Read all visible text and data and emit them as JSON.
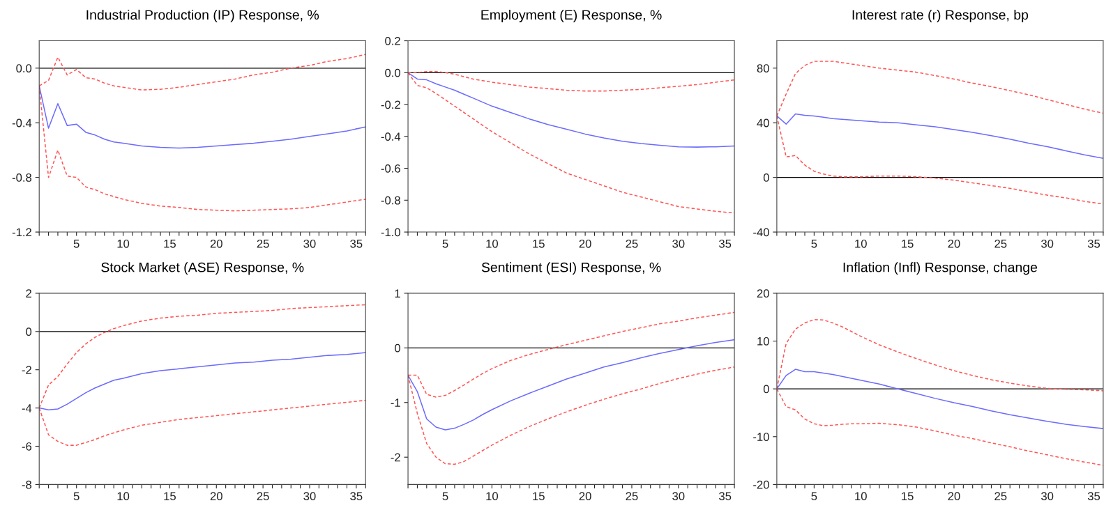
{
  "chart_data": [
    {
      "type": "line",
      "title": "Industrial Production (IP) Response, %",
      "x": [
        1,
        2,
        3,
        4,
        5,
        6,
        7,
        8,
        9,
        10,
        12,
        14,
        16,
        18,
        20,
        22,
        24,
        26,
        28,
        30,
        32,
        34,
        36
      ],
      "xlim": [
        1,
        36
      ],
      "xticks": [
        {
          "value": 1,
          "label": null
        },
        {
          "value": 2,
          "label": null
        },
        {
          "value": 3,
          "label": null
        },
        {
          "value": 4,
          "label": null
        },
        5,
        {
          "value": 6,
          "label": null
        },
        {
          "value": 7,
          "label": null
        },
        {
          "value": 8,
          "label": null
        },
        {
          "value": 9,
          "label": null
        },
        10,
        {
          "value": 11,
          "label": null
        },
        {
          "value": 12,
          "label": null
        },
        {
          "value": 13,
          "label": null
        },
        {
          "value": 14,
          "label": null
        },
        15,
        {
          "value": 16,
          "label": null
        },
        {
          "value": 17,
          "label": null
        },
        {
          "value": 18,
          "label": null
        },
        {
          "value": 19,
          "label": null
        },
        20,
        {
          "value": 21,
          "label": null
        },
        {
          "value": 22,
          "label": null
        },
        {
          "value": 23,
          "label": null
        },
        {
          "value": 24,
          "label": null
        },
        25,
        {
          "value": 26,
          "label": null
        },
        {
          "value": 27,
          "label": null
        },
        {
          "value": 28,
          "label": null
        },
        {
          "value": 29,
          "label": null
        },
        30,
        {
          "value": 31,
          "label": null
        },
        {
          "value": 32,
          "label": null
        },
        {
          "value": 33,
          "label": null
        },
        {
          "value": 34,
          "label": null
        },
        35,
        {
          "value": 36,
          "label": null
        }
      ],
      "ylim": [
        -1.2,
        0.2
      ],
      "yticks": [
        {
          "value": -1.2,
          "label": "-1.2"
        },
        {
          "value": -0.8,
          "label": "-0.8"
        },
        {
          "value": -0.4,
          "label": "-0.4"
        },
        {
          "value": 0,
          "label": "0.0"
        }
      ],
      "grid": false,
      "ref_lines": [
        {
          "axis": "y",
          "value": 0,
          "color": "#000000"
        }
      ],
      "series": [
        {
          "color": "#6b6bff",
          "line_style": "solid",
          "values": [
            -0.13,
            -0.44,
            -0.26,
            -0.42,
            -0.41,
            -0.47,
            -0.49,
            -0.52,
            -0.54,
            -0.55,
            -0.57,
            -0.58,
            -0.585,
            -0.58,
            -0.57,
            -0.56,
            -0.55,
            -0.535,
            -0.52,
            -0.5,
            -0.48,
            -0.46,
            -0.43
          ]
        },
        {
          "color": "#ff5555",
          "line_style": "dashed",
          "values": [
            -0.13,
            -0.09,
            0.08,
            -0.05,
            -0.01,
            -0.07,
            -0.08,
            -0.11,
            -0.13,
            -0.14,
            -0.16,
            -0.155,
            -0.14,
            -0.12,
            -0.1,
            -0.08,
            -0.05,
            -0.03,
            0.0,
            0.02,
            0.05,
            0.07,
            0.1
          ]
        },
        {
          "color": "#ff5555",
          "line_style": "dashed",
          "values": [
            -0.13,
            -0.8,
            -0.6,
            -0.79,
            -0.8,
            -0.87,
            -0.89,
            -0.92,
            -0.94,
            -0.96,
            -0.99,
            -1.01,
            -1.02,
            -1.035,
            -1.04,
            -1.045,
            -1.04,
            -1.035,
            -1.03,
            -1.02,
            -1.0,
            -0.98,
            -0.96
          ]
        }
      ]
    },
    {
      "type": "line",
      "title": "Employment (E) Response, %",
      "x": [
        1,
        2,
        3,
        4,
        5,
        6,
        7,
        8,
        9,
        10,
        12,
        14,
        16,
        18,
        20,
        22,
        24,
        26,
        28,
        30,
        32,
        34,
        36
      ],
      "xlim": [
        1,
        36
      ],
      "xticks": [
        {
          "value": 1,
          "label": null
        },
        {
          "value": 2,
          "label": null
        },
        {
          "value": 3,
          "label": null
        },
        {
          "value": 4,
          "label": null
        },
        5,
        {
          "value": 6,
          "label": null
        },
        {
          "value": 7,
          "label": null
        },
        {
          "value": 8,
          "label": null
        },
        {
          "value": 9,
          "label": null
        },
        10,
        {
          "value": 11,
          "label": null
        },
        {
          "value": 12,
          "label": null
        },
        {
          "value": 13,
          "label": null
        },
        {
          "value": 14,
          "label": null
        },
        15,
        {
          "value": 16,
          "label": null
        },
        {
          "value": 17,
          "label": null
        },
        {
          "value": 18,
          "label": null
        },
        {
          "value": 19,
          "label": null
        },
        20,
        {
          "value": 21,
          "label": null
        },
        {
          "value": 22,
          "label": null
        },
        {
          "value": 23,
          "label": null
        },
        {
          "value": 24,
          "label": null
        },
        25,
        {
          "value": 26,
          "label": null
        },
        {
          "value": 27,
          "label": null
        },
        {
          "value": 28,
          "label": null
        },
        {
          "value": 29,
          "label": null
        },
        30,
        {
          "value": 31,
          "label": null
        },
        {
          "value": 32,
          "label": null
        },
        {
          "value": 33,
          "label": null
        },
        {
          "value": 34,
          "label": null
        },
        35,
        {
          "value": 36,
          "label": null
        }
      ],
      "ylim": [
        -1.0,
        0.2
      ],
      "yticks": [
        {
          "value": -1.0,
          "label": "-1.0"
        },
        {
          "value": -0.8,
          "label": "-0.8"
        },
        {
          "value": -0.6,
          "label": "-0.6"
        },
        {
          "value": -0.4,
          "label": "-0.4"
        },
        {
          "value": -0.2,
          "label": "-0.2"
        },
        {
          "value": 0,
          "label": "0.0"
        },
        {
          "value": 0.2,
          "label": "0.2"
        }
      ],
      "grid": false,
      "ref_lines": [
        {
          "axis": "y",
          "value": 0,
          "color": "#000000"
        }
      ],
      "series": [
        {
          "color": "#6b6bff",
          "line_style": "solid",
          "values": [
            0,
            -0.04,
            -0.045,
            -0.07,
            -0.09,
            -0.11,
            -0.135,
            -0.16,
            -0.185,
            -0.21,
            -0.25,
            -0.29,
            -0.325,
            -0.355,
            -0.385,
            -0.41,
            -0.43,
            -0.445,
            -0.455,
            -0.465,
            -0.467,
            -0.465,
            -0.46
          ]
        },
        {
          "color": "#ff5555",
          "line_style": "dashed",
          "values": [
            0,
            0,
            0.007,
            0.007,
            0,
            -0.01,
            -0.025,
            -0.04,
            -0.05,
            -0.06,
            -0.075,
            -0.09,
            -0.1,
            -0.11,
            -0.115,
            -0.115,
            -0.11,
            -0.105,
            -0.095,
            -0.085,
            -0.075,
            -0.06,
            -0.045
          ]
        },
        {
          "color": "#ff5555",
          "line_style": "dashed",
          "values": [
            0,
            -0.08,
            -0.095,
            -0.13,
            -0.17,
            -0.21,
            -0.25,
            -0.29,
            -0.33,
            -0.37,
            -0.44,
            -0.51,
            -0.57,
            -0.63,
            -0.67,
            -0.71,
            -0.75,
            -0.78,
            -0.81,
            -0.84,
            -0.855,
            -0.87,
            -0.88
          ]
        }
      ]
    },
    {
      "type": "line",
      "title": "Interest rate (r) Response, bp",
      "x": [
        1,
        2,
        3,
        4,
        5,
        6,
        7,
        8,
        9,
        10,
        12,
        14,
        16,
        18,
        20,
        22,
        24,
        26,
        28,
        30,
        32,
        34,
        36
      ],
      "xlim": [
        1,
        36
      ],
      "xticks": [
        {
          "value": 1,
          "label": null
        },
        {
          "value": 2,
          "label": null
        },
        {
          "value": 3,
          "label": null
        },
        {
          "value": 4,
          "label": null
        },
        5,
        {
          "value": 6,
          "label": null
        },
        {
          "value": 7,
          "label": null
        },
        {
          "value": 8,
          "label": null
        },
        {
          "value": 9,
          "label": null
        },
        10,
        {
          "value": 11,
          "label": null
        },
        {
          "value": 12,
          "label": null
        },
        {
          "value": 13,
          "label": null
        },
        {
          "value": 14,
          "label": null
        },
        15,
        {
          "value": 16,
          "label": null
        },
        {
          "value": 17,
          "label": null
        },
        {
          "value": 18,
          "label": null
        },
        {
          "value": 19,
          "label": null
        },
        20,
        {
          "value": 21,
          "label": null
        },
        {
          "value": 22,
          "label": null
        },
        {
          "value": 23,
          "label": null
        },
        {
          "value": 24,
          "label": null
        },
        25,
        {
          "value": 26,
          "label": null
        },
        {
          "value": 27,
          "label": null
        },
        {
          "value": 28,
          "label": null
        },
        {
          "value": 29,
          "label": null
        },
        30,
        {
          "value": 31,
          "label": null
        },
        {
          "value": 32,
          "label": null
        },
        {
          "value": 33,
          "label": null
        },
        {
          "value": 34,
          "label": null
        },
        35,
        {
          "value": 36,
          "label": null
        }
      ],
      "ylim": [
        -40,
        100
      ],
      "yticks": [
        -40,
        0,
        40,
        80
      ],
      "grid": false,
      "ref_lines": [
        {
          "axis": "y",
          "value": 0,
          "color": "#000000"
        }
      ],
      "series": [
        {
          "color": "#6b6bff",
          "line_style": "solid",
          "values": [
            45,
            39,
            46.5,
            45.5,
            45,
            44,
            43,
            42.5,
            42,
            41.5,
            40.5,
            40,
            38.5,
            37,
            35,
            33,
            30.5,
            28,
            25,
            22.5,
            19.5,
            16.5,
            14
          ]
        },
        {
          "color": "#ff5555",
          "line_style": "dashed",
          "values": [
            45,
            61,
            76,
            82,
            85,
            85,
            85,
            84,
            83,
            82,
            80,
            78.5,
            77,
            74.5,
            72,
            69,
            66.5,
            63.5,
            60.5,
            57,
            53.5,
            50,
            47
          ]
        },
        {
          "color": "#ff5555",
          "line_style": "dashed",
          "values": [
            45,
            15,
            16,
            9,
            4.5,
            2.5,
            1,
            0.5,
            0.5,
            0.5,
            1,
            1,
            0.5,
            -0.5,
            -2,
            -4,
            -6,
            -8,
            -10.5,
            -13,
            -15,
            -17.5,
            -19.5
          ]
        }
      ]
    },
    {
      "type": "line",
      "title": "Stock Market (ASE) Response, %",
      "x": [
        1,
        2,
        3,
        4,
        5,
        6,
        7,
        8,
        9,
        10,
        12,
        14,
        16,
        18,
        20,
        22,
        24,
        26,
        28,
        30,
        32,
        34,
        36
      ],
      "xlim": [
        1,
        36
      ],
      "xticks": [
        {
          "value": 1,
          "label": null
        },
        {
          "value": 2,
          "label": null
        },
        {
          "value": 3,
          "label": null
        },
        {
          "value": 4,
          "label": null
        },
        5,
        {
          "value": 6,
          "label": null
        },
        {
          "value": 7,
          "label": null
        },
        {
          "value": 8,
          "label": null
        },
        {
          "value": 9,
          "label": null
        },
        10,
        {
          "value": 11,
          "label": null
        },
        {
          "value": 12,
          "label": null
        },
        {
          "value": 13,
          "label": null
        },
        {
          "value": 14,
          "label": null
        },
        15,
        {
          "value": 16,
          "label": null
        },
        {
          "value": 17,
          "label": null
        },
        {
          "value": 18,
          "label": null
        },
        {
          "value": 19,
          "label": null
        },
        20,
        {
          "value": 21,
          "label": null
        },
        {
          "value": 22,
          "label": null
        },
        {
          "value": 23,
          "label": null
        },
        {
          "value": 24,
          "label": null
        },
        25,
        {
          "value": 26,
          "label": null
        },
        {
          "value": 27,
          "label": null
        },
        {
          "value": 28,
          "label": null
        },
        {
          "value": 29,
          "label": null
        },
        30,
        {
          "value": 31,
          "label": null
        },
        {
          "value": 32,
          "label": null
        },
        {
          "value": 33,
          "label": null
        },
        {
          "value": 34,
          "label": null
        },
        35,
        {
          "value": 36,
          "label": null
        }
      ],
      "ylim": [
        -8,
        2
      ],
      "yticks": [
        -8,
        -6,
        -4,
        -2,
        0,
        2
      ],
      "grid": false,
      "ref_lines": [
        {
          "axis": "y",
          "value": 0,
          "color": "#000000"
        }
      ],
      "series": [
        {
          "color": "#6b6bff",
          "line_style": "solid",
          "values": [
            -4,
            -4.1,
            -4.05,
            -3.8,
            -3.5,
            -3.2,
            -2.95,
            -2.75,
            -2.55,
            -2.45,
            -2.2,
            -2.05,
            -1.95,
            -1.85,
            -1.75,
            -1.65,
            -1.6,
            -1.5,
            -1.45,
            -1.35,
            -1.25,
            -1.2,
            -1.1
          ]
        },
        {
          "color": "#ff5555",
          "line_style": "dashed",
          "values": [
            -4,
            -2.8,
            -2.35,
            -1.7,
            -1.1,
            -0.65,
            -0.3,
            -0.05,
            0.15,
            0.3,
            0.55,
            0.7,
            0.8,
            0.85,
            0.95,
            1.0,
            1.05,
            1.1,
            1.2,
            1.25,
            1.3,
            1.35,
            1.4
          ]
        },
        {
          "color": "#ff5555",
          "line_style": "dashed",
          "values": [
            -4,
            -5.4,
            -5.75,
            -5.95,
            -5.95,
            -5.8,
            -5.65,
            -5.45,
            -5.3,
            -5.15,
            -4.9,
            -4.75,
            -4.6,
            -4.5,
            -4.4,
            -4.3,
            -4.2,
            -4.1,
            -4.0,
            -3.9,
            -3.8,
            -3.7,
            -3.6
          ]
        }
      ]
    },
    {
      "type": "line",
      "title": "Sentiment (ESI) Response, %",
      "x": [
        1,
        2,
        3,
        4,
        5,
        6,
        7,
        8,
        9,
        10,
        12,
        14,
        16,
        18,
        20,
        22,
        24,
        26,
        28,
        30,
        32,
        34,
        36
      ],
      "xlim": [
        1,
        36
      ],
      "xticks": [
        {
          "value": 1,
          "label": null
        },
        {
          "value": 2,
          "label": null
        },
        {
          "value": 3,
          "label": null
        },
        {
          "value": 4,
          "label": null
        },
        5,
        {
          "value": 6,
          "label": null
        },
        {
          "value": 7,
          "label": null
        },
        {
          "value": 8,
          "label": null
        },
        {
          "value": 9,
          "label": null
        },
        10,
        {
          "value": 11,
          "label": null
        },
        {
          "value": 12,
          "label": null
        },
        {
          "value": 13,
          "label": null
        },
        {
          "value": 14,
          "label": null
        },
        15,
        {
          "value": 16,
          "label": null
        },
        {
          "value": 17,
          "label": null
        },
        {
          "value": 18,
          "label": null
        },
        {
          "value": 19,
          "label": null
        },
        20,
        {
          "value": 21,
          "label": null
        },
        {
          "value": 22,
          "label": null
        },
        {
          "value": 23,
          "label": null
        },
        {
          "value": 24,
          "label": null
        },
        25,
        {
          "value": 26,
          "label": null
        },
        {
          "value": 27,
          "label": null
        },
        {
          "value": 28,
          "label": null
        },
        {
          "value": 29,
          "label": null
        },
        30,
        {
          "value": 31,
          "label": null
        },
        {
          "value": 32,
          "label": null
        },
        {
          "value": 33,
          "label": null
        },
        {
          "value": 34,
          "label": null
        },
        35,
        {
          "value": 36,
          "label": null
        }
      ],
      "ylim": [
        -2.5,
        1
      ],
      "yticks": [
        -2,
        -1,
        0,
        1
      ],
      "grid": false,
      "ref_lines": [
        {
          "axis": "y",
          "value": 0,
          "color": "#000000"
        }
      ],
      "series": [
        {
          "color": "#6b6bff",
          "line_style": "solid",
          "values": [
            -0.5,
            -0.8,
            -1.3,
            -1.45,
            -1.5,
            -1.47,
            -1.4,
            -1.32,
            -1.22,
            -1.13,
            -0.97,
            -0.83,
            -0.7,
            -0.57,
            -0.46,
            -0.35,
            -0.27,
            -0.18,
            -0.1,
            -0.03,
            0.04,
            0.1,
            0.15
          ]
        },
        {
          "color": "#ff5555",
          "line_style": "dashed",
          "values": [
            -0.5,
            -0.5,
            -0.85,
            -0.9,
            -0.87,
            -0.78,
            -0.68,
            -0.57,
            -0.47,
            -0.38,
            -0.23,
            -0.12,
            -0.03,
            0.06,
            0.14,
            0.22,
            0.3,
            0.37,
            0.44,
            0.49,
            0.55,
            0.6,
            0.65
          ]
        },
        {
          "color": "#ff5555",
          "line_style": "dashed",
          "values": [
            -0.5,
            -1.2,
            -1.75,
            -2.0,
            -2.12,
            -2.13,
            -2.08,
            -1.98,
            -1.88,
            -1.78,
            -1.6,
            -1.44,
            -1.3,
            -1.17,
            -1.05,
            -0.94,
            -0.84,
            -0.75,
            -0.65,
            -0.56,
            -0.48,
            -0.41,
            -0.35
          ]
        }
      ]
    },
    {
      "type": "line",
      "title": "Inflation (Infl) Response, change",
      "x": [
        1,
        2,
        3,
        4,
        5,
        6,
        7,
        8,
        9,
        10,
        12,
        14,
        16,
        18,
        20,
        22,
        24,
        26,
        28,
        30,
        32,
        34,
        36
      ],
      "xlim": [
        1,
        36
      ],
      "xticks": [
        {
          "value": 1,
          "label": null
        },
        {
          "value": 2,
          "label": null
        },
        {
          "value": 3,
          "label": null
        },
        {
          "value": 4,
          "label": null
        },
        5,
        {
          "value": 6,
          "label": null
        },
        {
          "value": 7,
          "label": null
        },
        {
          "value": 8,
          "label": null
        },
        {
          "value": 9,
          "label": null
        },
        10,
        {
          "value": 11,
          "label": null
        },
        {
          "value": 12,
          "label": null
        },
        {
          "value": 13,
          "label": null
        },
        {
          "value": 14,
          "label": null
        },
        15,
        {
          "value": 16,
          "label": null
        },
        {
          "value": 17,
          "label": null
        },
        {
          "value": 18,
          "label": null
        },
        {
          "value": 19,
          "label": null
        },
        20,
        {
          "value": 21,
          "label": null
        },
        {
          "value": 22,
          "label": null
        },
        {
          "value": 23,
          "label": null
        },
        {
          "value": 24,
          "label": null
        },
        25,
        {
          "value": 26,
          "label": null
        },
        {
          "value": 27,
          "label": null
        },
        {
          "value": 28,
          "label": null
        },
        {
          "value": 29,
          "label": null
        },
        30,
        {
          "value": 31,
          "label": null
        },
        {
          "value": 32,
          "label": null
        },
        {
          "value": 33,
          "label": null
        },
        {
          "value": 34,
          "label": null
        },
        35,
        {
          "value": 36,
          "label": null
        }
      ],
      "ylim": [
        -20,
        20
      ],
      "yticks": [
        -20,
        -10,
        0,
        10,
        20
      ],
      "grid": false,
      "ref_lines": [
        {
          "axis": "y",
          "value": 0,
          "color": "#000000"
        }
      ],
      "series": [
        {
          "color": "#6b6bff",
          "line_style": "solid",
          "values": [
            0,
            2.8,
            4.1,
            3.6,
            3.6,
            3.3,
            3.0,
            2.6,
            2.2,
            1.8,
            1.0,
            0.0,
            -1.0,
            -2.0,
            -2.9,
            -3.7,
            -4.6,
            -5.4,
            -6.1,
            -6.8,
            -7.4,
            -7.9,
            -8.3
          ]
        },
        {
          "color": "#ff5555",
          "line_style": "dashed",
          "values": [
            0,
            9.5,
            12.5,
            13.8,
            14.5,
            14.4,
            13.8,
            13.0,
            12.0,
            11.0,
            9.2,
            7.7,
            6.3,
            5.0,
            3.8,
            2.8,
            1.9,
            1.2,
            0.6,
            0.1,
            -0.1,
            -0.2,
            -0.4
          ]
        },
        {
          "color": "#ff5555",
          "line_style": "dashed",
          "values": [
            0,
            -3.7,
            -4.4,
            -6.3,
            -7.3,
            -7.7,
            -7.6,
            -7.4,
            -7.3,
            -7.3,
            -7.2,
            -7.5,
            -8.0,
            -8.8,
            -9.7,
            -10.4,
            -11.3,
            -12.1,
            -13.0,
            -13.8,
            -14.6,
            -15.3,
            -16.0
          ]
        }
      ]
    }
  ]
}
